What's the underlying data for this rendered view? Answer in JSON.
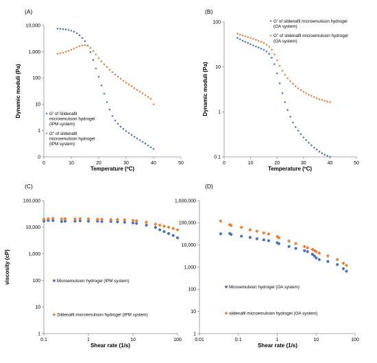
{
  "chart_data": [
    {
      "panel_label": "(A)",
      "type": "scatter",
      "xlabel": "Temperature (ºC)",
      "ylabel": "Dynamic moduli (Pa)",
      "xlim": [
        0,
        50
      ],
      "ylim": [
        0.1,
        10000
      ],
      "yscale": "log",
      "xticks": [
        0,
        10,
        20,
        30,
        40,
        50
      ],
      "yticks": [
        0.1,
        1,
        10,
        100,
        1000,
        10000
      ],
      "xtick_labels": [
        "0",
        "10",
        "20",
        "30",
        "40",
        "50"
      ],
      "ytick_labels": [
        "0",
        "1",
        "10",
        "100",
        "1,000",
        "10,000"
      ],
      "grid": false,
      "legend_position": "bottom-left",
      "series": [
        {
          "name": "G' of Sildenafil microemulsion hydrogel (IPM system)",
          "color": "#4472C4",
          "x": [
            5,
            6,
            7,
            8,
            9,
            10,
            11,
            12,
            13,
            14,
            15,
            16,
            17,
            18,
            19,
            20,
            21,
            22,
            23,
            24,
            25,
            26,
            27,
            28,
            29,
            30,
            31,
            32,
            33,
            34,
            35,
            36,
            37,
            38,
            39,
            40
          ],
          "y": [
            7500,
            7400,
            7200,
            7000,
            6700,
            6300,
            5700,
            5000,
            4200,
            3300,
            2500,
            1700,
            950,
            480,
            230,
            110,
            52,
            25,
            12,
            6.3,
            3.6,
            2.4,
            1.8,
            1.4,
            1.15,
            0.95,
            0.8,
            0.68,
            0.58,
            0.5,
            0.43,
            0.37,
            0.32,
            0.27,
            0.23,
            0.2
          ]
        },
        {
          "name": "G\" of sildenafil microemulsion hydrogel (IPM system)",
          "color": "#ED7D31",
          "x": [
            5,
            6,
            7,
            8,
            9,
            10,
            11,
            12,
            13,
            14,
            15,
            16,
            17,
            18,
            19,
            20,
            21,
            22,
            23,
            24,
            25,
            26,
            27,
            28,
            29,
            30,
            31,
            32,
            33,
            34,
            35,
            36,
            37,
            38,
            39,
            40
          ],
          "y": [
            820,
            860,
            920,
            990,
            1070,
            1170,
            1300,
            1450,
            1600,
            1720,
            1760,
            1650,
            1380,
            1050,
            780,
            570,
            430,
            330,
            260,
            205,
            165,
            135,
            112,
            93,
            78,
            66,
            56,
            48,
            41,
            35,
            30,
            26,
            22,
            19,
            16,
            10
          ]
        }
      ]
    },
    {
      "panel_label": "(B)",
      "type": "scatter",
      "xlabel": "Temperature (ºC)",
      "ylabel": "Dynamic moduli (Pa)",
      "xlim": [
        0,
        50
      ],
      "ylim": [
        0.1,
        100
      ],
      "yscale": "log",
      "xticks": [
        0,
        10,
        20,
        30,
        40,
        50
      ],
      "yticks": [
        0.1,
        1,
        10,
        100
      ],
      "xtick_labels": [
        "0",
        "10",
        "20",
        "30",
        "40",
        "50"
      ],
      "ytick_labels": [
        "0.1",
        "1",
        "10",
        "100"
      ],
      "grid": false,
      "legend_position": "top-right",
      "series": [
        {
          "name": "G' of sildenafil microemulsion hydrogel (OA system)",
          "color": "#4472C4",
          "x": [
            5,
            6,
            7,
            8,
            9,
            10,
            11,
            12,
            13,
            14,
            15,
            16,
            17,
            18,
            19,
            20,
            21,
            22,
            23,
            24,
            25,
            26,
            27,
            28,
            29,
            30,
            31,
            32,
            33,
            34,
            35,
            36,
            37,
            38,
            39,
            40
          ],
          "y": [
            44,
            41,
            38,
            36,
            34,
            32,
            30,
            28.5,
            27,
            25.5,
            24,
            22,
            19.5,
            16,
            11.5,
            7.2,
            4.3,
            2.6,
            1.65,
            1.1,
            0.78,
            0.58,
            0.46,
            0.38,
            0.32,
            0.27,
            0.235,
            0.205,
            0.18,
            0.16,
            0.145,
            0.13,
            0.12,
            0.112,
            0.105,
            0.1
          ]
        },
        {
          "name": "G\" of sildenafil microemulsion hydrogel (OA system)",
          "color": "#ED7D31",
          "x": [
            5,
            6,
            7,
            8,
            9,
            10,
            11,
            12,
            13,
            14,
            15,
            16,
            17,
            18,
            19,
            20,
            21,
            22,
            23,
            24,
            25,
            26,
            27,
            28,
            29,
            30,
            31,
            32,
            33,
            34,
            35,
            36,
            37,
            38,
            39,
            40
          ],
          "y": [
            55,
            52,
            50,
            48,
            46,
            44,
            42,
            40,
            38,
            36,
            34,
            31,
            28,
            24,
            19,
            14,
            10.5,
            8.2,
            6.7,
            5.6,
            4.8,
            4.2,
            3.7,
            3.35,
            3.05,
            2.8,
            2.6,
            2.42,
            2.27,
            2.13,
            2.02,
            1.92,
            1.84,
            1.77,
            1.7,
            1.65
          ]
        }
      ]
    },
    {
      "panel_label": "(C)",
      "type": "scatter",
      "xlabel": "Shear rate (1/s)",
      "ylabel": "viscosity (cP)",
      "xlim": [
        0.1,
        100
      ],
      "ylim": [
        1,
        100000
      ],
      "xscale": "log",
      "yscale": "log",
      "xticks": [
        0.1,
        1,
        10,
        100
      ],
      "yticks": [
        1,
        10,
        100,
        1000,
        10000,
        100000
      ],
      "xtick_labels": [
        "0.1",
        "1",
        "10",
        "100"
      ],
      "ytick_labels": [
        "1",
        "10",
        "100",
        "1,000",
        "10,000",
        "100,000"
      ],
      "grid": false,
      "legend_position": "bottom-left",
      "series": [
        {
          "name": "Microemulsion hydrogel (IPM system)",
          "color": "#4472C4",
          "marker": "circle",
          "x": [
            0.1,
            0.125,
            0.16,
            0.25,
            0.3,
            0.5,
            0.65,
            1,
            1.6,
            2,
            3.2,
            4.5,
            6.5,
            10,
            12,
            20,
            32,
            40,
            50,
            63,
            80,
            100
          ],
          "y": [
            17000,
            18000,
            18000,
            16500,
            17000,
            17000,
            17500,
            17000,
            17000,
            16500,
            16500,
            16000,
            15500,
            14500,
            14000,
            12000,
            9800,
            8000,
            6900,
            5800,
            4900,
            4000
          ]
        },
        {
          "name": "Sildenafil microemulsion hydrogel (IPM system)",
          "color": "#ED7D31",
          "marker": "diamond",
          "x": [
            0.1,
            0.125,
            0.16,
            0.25,
            0.3,
            0.5,
            0.65,
            1,
            1.6,
            2,
            3.2,
            4.5,
            6.5,
            10,
            12,
            20,
            32,
            40,
            50,
            63,
            80,
            100
          ],
          "y": [
            20000,
            21000,
            21500,
            20500,
            21000,
            20500,
            21000,
            20500,
            20000,
            20000,
            19500,
            19500,
            19000,
            18000,
            17500,
            15500,
            13000,
            12000,
            11000,
            10000,
            9000,
            8000
          ]
        }
      ]
    },
    {
      "panel_label": "(D)",
      "type": "scatter",
      "xlabel": "Shear rate (1/s)",
      "ylabel": "",
      "xlim": [
        0.01,
        100
      ],
      "ylim": [
        1,
        1000000
      ],
      "xscale": "log",
      "yscale": "log",
      "xticks": [
        0.01,
        0.1,
        1,
        10,
        100
      ],
      "yticks": [
        1,
        10,
        100,
        1000,
        10000,
        100000,
        1000000
      ],
      "xtick_labels": [
        "0.01",
        "0.1",
        "1",
        "10",
        "100"
      ],
      "ytick_labels": [
        "1",
        "10",
        "100",
        "1,000",
        "10,000",
        "100,000",
        "1,000,000"
      ],
      "grid": false,
      "legend_position": "bottom-left",
      "series": [
        {
          "name": "Microemulsion hydrogel (OA system)",
          "color": "#4472C4",
          "marker": "circle",
          "x": [
            0.035,
            0.06,
            0.065,
            0.12,
            0.2,
            0.3,
            0.45,
            0.6,
            1,
            1.1,
            2,
            3,
            5,
            6,
            8,
            9,
            10,
            12,
            20,
            35,
            50,
            60
          ],
          "y": [
            32000,
            33000,
            30000,
            25000,
            22000,
            19000,
            17000,
            15500,
            12500,
            11500,
            8500,
            7000,
            5500,
            5000,
            3800,
            3200,
            2600,
            2200,
            1800,
            1300,
            850,
            650
          ]
        },
        {
          "name": "sildenafil microemulsion hydrogel (OA system)",
          "color": "#ED7D31",
          "marker": "diamond",
          "x": [
            0.035,
            0.06,
            0.065,
            0.12,
            0.2,
            0.3,
            0.45,
            0.6,
            1,
            1.1,
            2,
            3,
            5,
            6,
            8,
            9,
            10,
            12,
            20,
            35,
            50,
            60
          ],
          "y": [
            120000,
            82000,
            76000,
            62000,
            48000,
            42000,
            35000,
            31000,
            24000,
            21000,
            15000,
            11500,
            8500,
            7500,
            6300,
            5600,
            5000,
            4300,
            3200,
            2200,
            1500,
            1200
          ]
        }
      ]
    }
  ]
}
